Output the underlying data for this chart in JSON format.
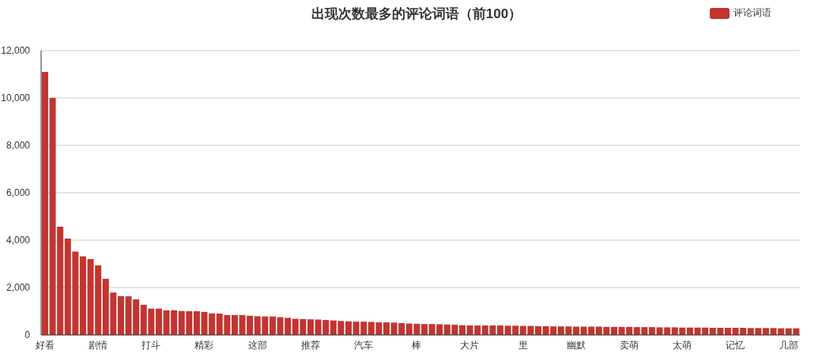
{
  "chart_data": {
    "type": "bar",
    "title": "出现次数最多的评论词语（前100）",
    "categories": [
      "好看",
      null,
      null,
      null,
      null,
      null,
      null,
      "剧情",
      null,
      null,
      null,
      null,
      null,
      null,
      "打斗",
      null,
      null,
      null,
      null,
      null,
      null,
      "精彩",
      null,
      null,
      null,
      null,
      null,
      null,
      "这部",
      null,
      null,
      null,
      null,
      null,
      null,
      "推荐",
      null,
      null,
      null,
      null,
      null,
      null,
      "汽车",
      null,
      null,
      null,
      null,
      null,
      null,
      "棒",
      null,
      null,
      null,
      null,
      null,
      null,
      "大片",
      null,
      null,
      null,
      null,
      null,
      null,
      "里",
      null,
      null,
      null,
      null,
      null,
      null,
      "幽默",
      null,
      null,
      null,
      null,
      null,
      null,
      "卖萌",
      null,
      null,
      null,
      null,
      null,
      null,
      "太萌",
      null,
      null,
      null,
      null,
      null,
      null,
      "记忆",
      null,
      null,
      null,
      null,
      null,
      null,
      "几部",
      null
    ],
    "series": [
      {
        "name": "评论词语",
        "color": "#c23531",
        "values": [
          11100,
          10000,
          4570,
          4070,
          3520,
          3320,
          3200,
          2930,
          2370,
          1790,
          1640,
          1630,
          1500,
          1270,
          1110,
          1110,
          1040,
          1040,
          1010,
          1000,
          1000,
          970,
          910,
          900,
          840,
          840,
          840,
          810,
          790,
          780,
          780,
          750,
          720,
          680,
          670,
          660,
          650,
          630,
          610,
          590,
          570,
          560,
          560,
          550,
          530,
          530,
          520,
          500,
          480,
          470,
          460,
          460,
          450,
          440,
          430,
          410,
          400,
          400,
          400,
          400,
          400,
          390,
          390,
          380,
          380,
          370,
          370,
          360,
          360,
          360,
          350,
          350,
          350,
          350,
          340,
          340,
          340,
          340,
          330,
          330,
          330,
          320,
          320,
          320,
          310,
          310,
          310,
          310,
          300,
          300,
          300,
          300,
          300,
          290,
          290,
          290,
          290,
          280,
          280,
          280
        ]
      }
    ],
    "ylim": [
      0,
      12000
    ],
    "yticks": [
      0,
      {
        "value": 2000,
        "label": "2,000"
      },
      {
        "value": 4000,
        "label": "4,000"
      },
      {
        "value": 6000,
        "label": "6,000"
      },
      {
        "value": 8000,
        "label": "8,000"
      },
      {
        "value": 10000,
        "label": "10,000"
      },
      {
        "value": 12000,
        "label": "12,000"
      }
    ],
    "grid": "y",
    "legend": "top right"
  }
}
